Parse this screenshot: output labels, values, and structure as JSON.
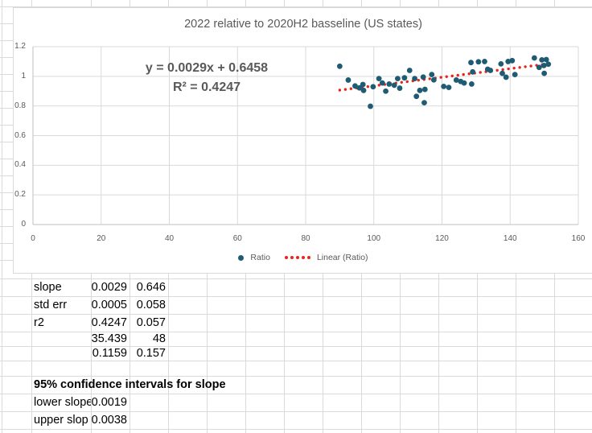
{
  "chart": {
    "title": "2022 relative to 2020H2 basseline (US states)",
    "equation_line1": "y = 0.0029x + 0.6458",
    "equation_line2": "R² = 0.4247",
    "legend": [
      {
        "label": "Ratio",
        "marker": "point"
      },
      {
        "label": "Linear (Ratio)",
        "marker": "dotted-line"
      }
    ],
    "colors": {
      "point": "#1F5C73",
      "trend": "#E8251C",
      "gridline": "#D9D9D9",
      "axis_line": "#BFBFBF",
      "text": "#595959"
    }
  },
  "chart_data": {
    "type": "scatter",
    "title": "2022 relative to 2020H2 basseline (US states)",
    "xlabel": "",
    "ylabel": "",
    "xlim": [
      0,
      160
    ],
    "ylim": [
      0,
      1.2
    ],
    "x_ticks": [
      0,
      20,
      40,
      60,
      80,
      100,
      120,
      140,
      160
    ],
    "y_ticks": [
      0,
      0.2,
      0.4,
      0.6,
      0.8,
      1,
      1.2
    ],
    "grid": true,
    "legend_position": "bottom",
    "series": [
      {
        "name": "Ratio",
        "points": [
          [
            90,
            1.068
          ],
          [
            92.5,
            0.975
          ],
          [
            94.5,
            0.935
          ],
          [
            95.8,
            0.922
          ],
          [
            96.8,
            0.945
          ],
          [
            97,
            0.905
          ],
          [
            99,
            0.798
          ],
          [
            99.8,
            0.93
          ],
          [
            101.5,
            0.985
          ],
          [
            102.5,
            0.955
          ],
          [
            103.5,
            0.9
          ],
          [
            104.5,
            0.948
          ],
          [
            106,
            0.94
          ],
          [
            107,
            0.985
          ],
          [
            107.6,
            0.92
          ],
          [
            109,
            0.99
          ],
          [
            110.5,
            1.04
          ],
          [
            112,
            0.985
          ],
          [
            112.5,
            0.865
          ],
          [
            113.5,
            0.905
          ],
          [
            114.5,
            0.995
          ],
          [
            115,
            0.912
          ],
          [
            114.8,
            0.822
          ],
          [
            117,
            1.012
          ],
          [
            117.6,
            0.976
          ],
          [
            120.5,
            0.932
          ],
          [
            122,
            0.925
          ],
          [
            124.2,
            0.975
          ],
          [
            125.5,
            0.965
          ],
          [
            126.5,
            0.955
          ],
          [
            128.5,
            1.093
          ],
          [
            129,
            1.03
          ],
          [
            128.7,
            0.948
          ],
          [
            130.7,
            1.098
          ],
          [
            132.5,
            1.1
          ],
          [
            133.4,
            1.048
          ],
          [
            134.2,
            1.04
          ],
          [
            137.3,
            1.084
          ],
          [
            137.7,
            1.02
          ],
          [
            138.8,
            0.994
          ],
          [
            139.4,
            1.1
          ],
          [
            140.6,
            1.106
          ],
          [
            141.4,
            1.012
          ],
          [
            147.1,
            1.124
          ],
          [
            148.5,
            1.06
          ],
          [
            149.3,
            1.111
          ],
          [
            149.9,
            1.073
          ],
          [
            150,
            1.02
          ],
          [
            150.6,
            1.113
          ],
          [
            151.2,
            1.082
          ]
        ]
      }
    ],
    "trendline": {
      "name": "Linear (Ratio)",
      "slope": 0.0029,
      "intercept": 0.6458,
      "r_squared": 0.4247,
      "x_start": 90,
      "x_end": 150.5,
      "style": "dotted"
    },
    "annotations": [
      "y = 0.0029x + 0.6458",
      "R² = 0.4247"
    ]
  },
  "sheet": {
    "stats_rows": [
      {
        "label": "slope",
        "v1": "0.0029",
        "v2": "0.646"
      },
      {
        "label": "std err",
        "v1": "0.0005",
        "v2": "0.058"
      },
      {
        "label": "r2",
        "v1": "0.4247",
        "v2": "0.057"
      },
      {
        "label": "",
        "v1": "35.439",
        "v2": "48"
      },
      {
        "label": "",
        "v1": "0.1159",
        "v2": "0.157"
      }
    ],
    "ci_header": "95% confidence intervals for slope",
    "ci_rows": [
      {
        "label": "lower slope",
        "v1": "0.0019"
      },
      {
        "label": "upper slop",
        "v1": "0.0038"
      }
    ]
  }
}
